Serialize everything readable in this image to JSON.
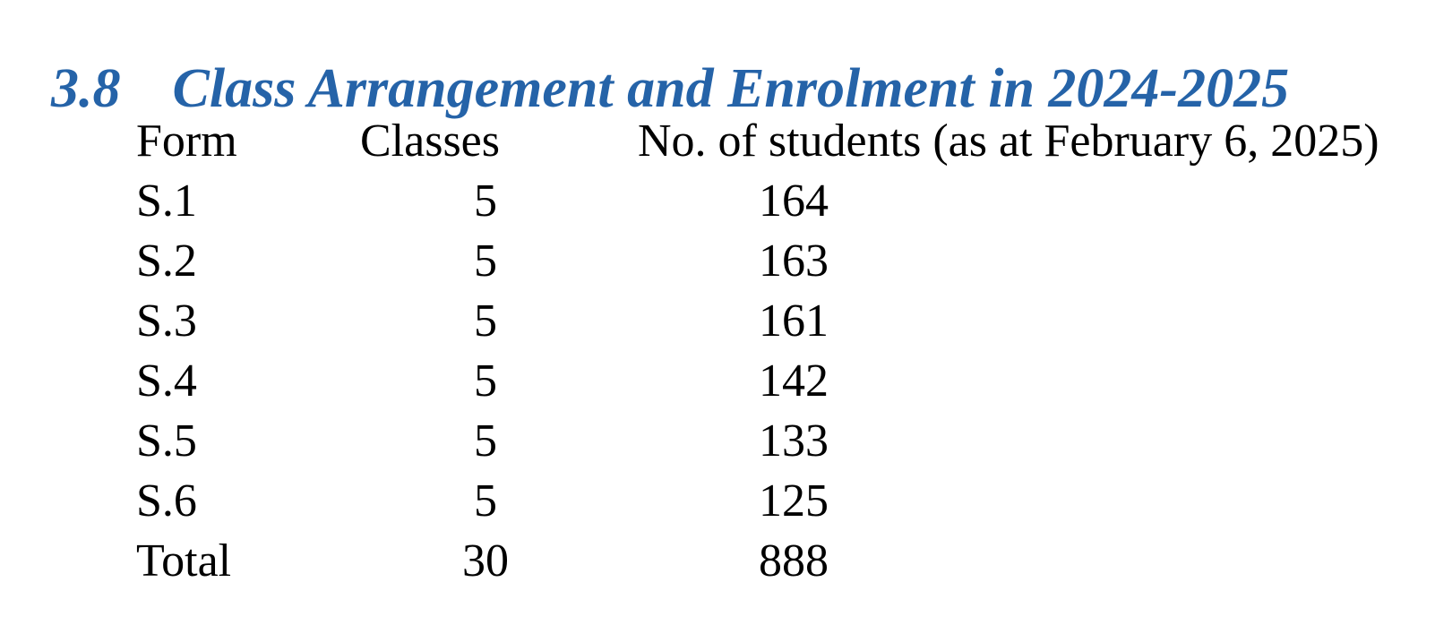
{
  "colors": {
    "heading_blue": "#2563A8",
    "body_text": "#000000",
    "background": "#FFFFFF"
  },
  "section": {
    "number": "3.8",
    "title": "Class Arrangement and Enrolment in 2024-2025"
  },
  "table": {
    "headers": {
      "form": "Form",
      "classes": "Classes",
      "students": "No. of students (as at February 6, 2025)"
    },
    "rows": [
      {
        "form": "S.1",
        "classes": "5",
        "students": "164"
      },
      {
        "form": "S.2",
        "classes": "5",
        "students": "163"
      },
      {
        "form": "S.3",
        "classes": "5",
        "students": "161"
      },
      {
        "form": "S.4",
        "classes": "5",
        "students": "142"
      },
      {
        "form": "S.5",
        "classes": "5",
        "students": "133"
      },
      {
        "form": "S.6",
        "classes": "5",
        "students": "125"
      },
      {
        "form": "Total",
        "classes": "30",
        "students": "888"
      }
    ]
  }
}
